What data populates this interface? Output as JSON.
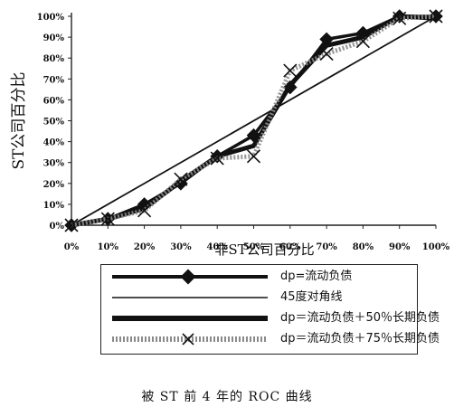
{
  "chart_data": {
    "type": "line",
    "title": "",
    "xlabel": "非ST公司百分比",
    "ylabel": "ST公司百分比",
    "xlim": [
      0,
      100
    ],
    "ylim": [
      0,
      100
    ],
    "grid": false,
    "legend_position": "bottom-right",
    "x_ticks": [
      "0%",
      "10%",
      "20%",
      "30%",
      "40%",
      "50%",
      "60%",
      "70%",
      "80%",
      "90%",
      "100%"
    ],
    "y_ticks": [
      "0%",
      "10%",
      "20%",
      "30%",
      "40%",
      "50%",
      "60%",
      "70%",
      "80%",
      "90%",
      "100%"
    ],
    "series": [
      {
        "name": "dp=流动负债",
        "style": "diamond",
        "x": [
          0,
          10,
          20,
          30,
          40,
          50,
          60,
          70,
          80,
          90,
          100
        ],
        "y": [
          0,
          3,
          10,
          20,
          33,
          43,
          66,
          89,
          92,
          100,
          100
        ]
      },
      {
        "name": "45度对角线",
        "style": "thin",
        "x": [
          0,
          100
        ],
        "y": [
          0,
          100
        ]
      },
      {
        "name": "dp＝流动负债＋50％长期负债",
        "style": "thick",
        "x": [
          0,
          10,
          20,
          30,
          40,
          50,
          60,
          70,
          80,
          90,
          100
        ],
        "y": [
          0,
          3,
          8,
          21,
          33,
          38,
          67,
          86,
          90,
          100,
          99
        ]
      },
      {
        "name": "dp＝流动负债＋75％长期负债",
        "style": "cross",
        "x": [
          0,
          10,
          20,
          30,
          40,
          50,
          60,
          70,
          80,
          90,
          100
        ],
        "y": [
          0,
          3,
          7,
          22,
          32,
          33,
          74,
          82,
          88,
          99,
          100
        ]
      }
    ]
  },
  "caption": "被 ST 前 4 年的 ROC 曲线",
  "colors": {
    "line": "#111111",
    "axis": "#222222",
    "hatch": "#8a8a8a"
  }
}
